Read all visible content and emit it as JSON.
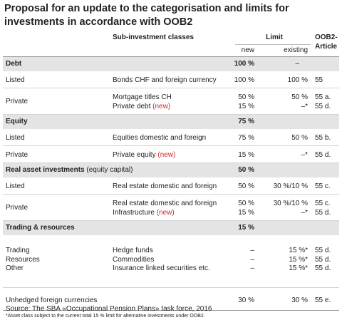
{
  "title": "Proposal for an update to the categorisation and limits for investments in accordance with OOB2",
  "columns": {
    "sub": "Sub-investment classes",
    "limit": "Limit",
    "new": "new",
    "existing": "existing",
    "article": [
      "OOB2-",
      "Article"
    ]
  },
  "sections": [
    {
      "name": "Debt",
      "new": "100 %",
      "existing": "–",
      "rows": [
        {
          "label": "Listed",
          "items": [
            {
              "name": "Bonds CHF and foreign currency",
              "new": "100 %",
              "existing": "100 %",
              "article": "55"
            }
          ]
        },
        {
          "label": "Private",
          "items": [
            {
              "name": "Mortgage titles CH",
              "new": "50 %",
              "existing": "50 %",
              "article": "55 a."
            },
            {
              "name": "Private debt",
              "tag": "(new)",
              "new": "15 %",
              "existing": "–*",
              "article": "55 d."
            }
          ]
        }
      ]
    },
    {
      "name": "Equity",
      "new": "75 %",
      "rows": [
        {
          "label": "Listed",
          "items": [
            {
              "name": "Equities domestic and foreign",
              "new": "75 %",
              "existing": "50 %",
              "article": "55 b."
            }
          ]
        },
        {
          "label": "Private",
          "items": [
            {
              "name": "Private equity",
              "tag": "(new)",
              "new": "15 %",
              "existing": "–*",
              "article": "55 d."
            }
          ]
        }
      ]
    },
    {
      "name": "Real asset investments",
      "note": "(equity capital)",
      "new": "50 %",
      "rows": [
        {
          "label": "Listed",
          "items": [
            {
              "name": "Real estate domestic and foreign",
              "new": "50 %",
              "existing": "30 %/10 %",
              "article": "55 c."
            }
          ]
        },
        {
          "label": "Private",
          "items": [
            {
              "name": "Real estate domestic and foreign",
              "new": "50 %",
              "existing": "30 %/10 %",
              "article": "55 c."
            },
            {
              "name": "Infrastructure",
              "tag": "(new)",
              "new": "15 %",
              "existing": "–*",
              "article": "55 d."
            }
          ]
        }
      ]
    },
    {
      "name": "Trading & resources",
      "new": "15 %",
      "rows": [
        {
          "items": [
            {
              "label": "Trading",
              "name": "Hedge funds",
              "new": "–",
              "existing": "15 %*",
              "article": "55 d."
            },
            {
              "label": "Resources",
              "name": "Commodities",
              "new": "–",
              "existing": "15 %*",
              "article": "55 d."
            },
            {
              "label": "Other",
              "name": "Insurance linked securities etc.",
              "new": "–",
              "existing": "15 %*",
              "article": "55 d."
            }
          ]
        }
      ]
    }
  ],
  "unhedged": {
    "label": "Unhedged foreign currencies",
    "new": "30 %",
    "existing": "30 %",
    "article": "55 e."
  },
  "footnote": "*Asset class subject to the current total 15 % limit for alternative investments under OOB2.",
  "source": "Source: The SBA «Occupational Pension Plans» task force, 2016"
}
